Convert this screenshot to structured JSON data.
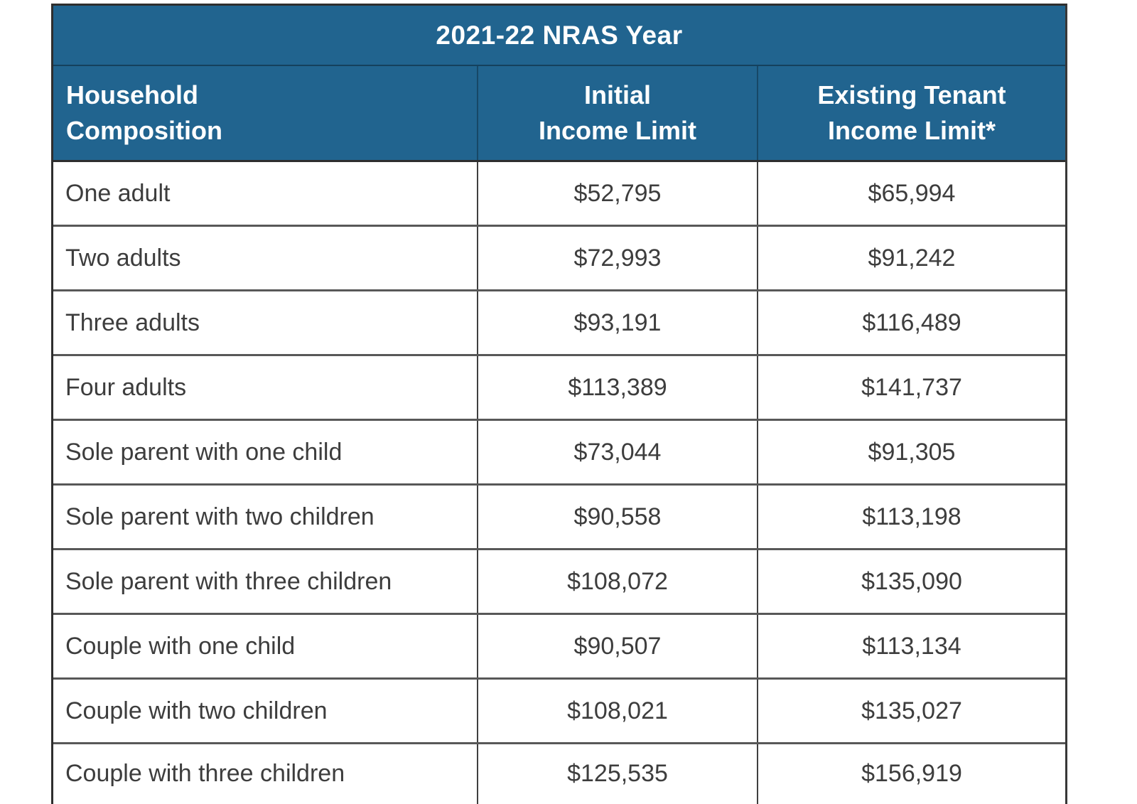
{
  "table": {
    "title": "2021-22 NRAS Year",
    "header": {
      "col1": {
        "line1": "Household",
        "line2": "Composition"
      },
      "col2": {
        "line1": "Initial",
        "line2": "Income Limit"
      },
      "col3": {
        "line1": "Existing Tenant",
        "line2": "Income Limit*"
      }
    },
    "rows": [
      {
        "household": "One adult",
        "initial": "$52,795",
        "existing": "$65,994"
      },
      {
        "household": "Two adults",
        "initial": "$72,993",
        "existing": "$91,242"
      },
      {
        "household": "Three adults",
        "initial": "$93,191",
        "existing": "$116,489"
      },
      {
        "household": "Four adults",
        "initial": "$113,389",
        "existing": "$141,737"
      },
      {
        "household": "Sole parent with one child",
        "initial": "$73,044",
        "existing": "$91,305"
      },
      {
        "household": "Sole parent with two children",
        "initial": "$90,558",
        "existing": "$113,198"
      },
      {
        "household": "Sole parent with three children",
        "initial": "$108,072",
        "existing": "$135,090"
      },
      {
        "household": "Couple with one child",
        "initial": "$90,507",
        "existing": "$113,134"
      },
      {
        "household": "Couple with two children",
        "initial": "$108,021",
        "existing": "$135,027"
      },
      {
        "household": "Couple with three children",
        "initial": "$125,535",
        "existing": "$156,919"
      }
    ],
    "colors": {
      "header_bg": "#21648f",
      "header_text": "#ffffff",
      "body_text": "#3d3d3d",
      "border_dark": "#2e2e2e",
      "border_row": "#585858"
    }
  },
  "chart_data": {
    "type": "table",
    "title": "2021-22 NRAS Year",
    "columns": [
      "Household Composition",
      "Initial Income Limit",
      "Existing Tenant Income Limit*"
    ],
    "rows": [
      [
        "One adult",
        "$52,795",
        "$65,994"
      ],
      [
        "Two adults",
        "$72,993",
        "$91,242"
      ],
      [
        "Three adults",
        "$93,191",
        "$116,489"
      ],
      [
        "Four adults",
        "$113,389",
        "$141,737"
      ],
      [
        "Sole parent with one child",
        "$73,044",
        "$91,305"
      ],
      [
        "Sole parent with two children",
        "$90,558",
        "$113,198"
      ],
      [
        "Sole parent with three children",
        "$108,072",
        "$135,090"
      ],
      [
        "Couple with one child",
        "$90,507",
        "$113,134"
      ],
      [
        "Couple with two children",
        "$108,021",
        "$135,027"
      ],
      [
        "Couple with three children",
        "$125,535",
        "$156,919"
      ]
    ]
  }
}
